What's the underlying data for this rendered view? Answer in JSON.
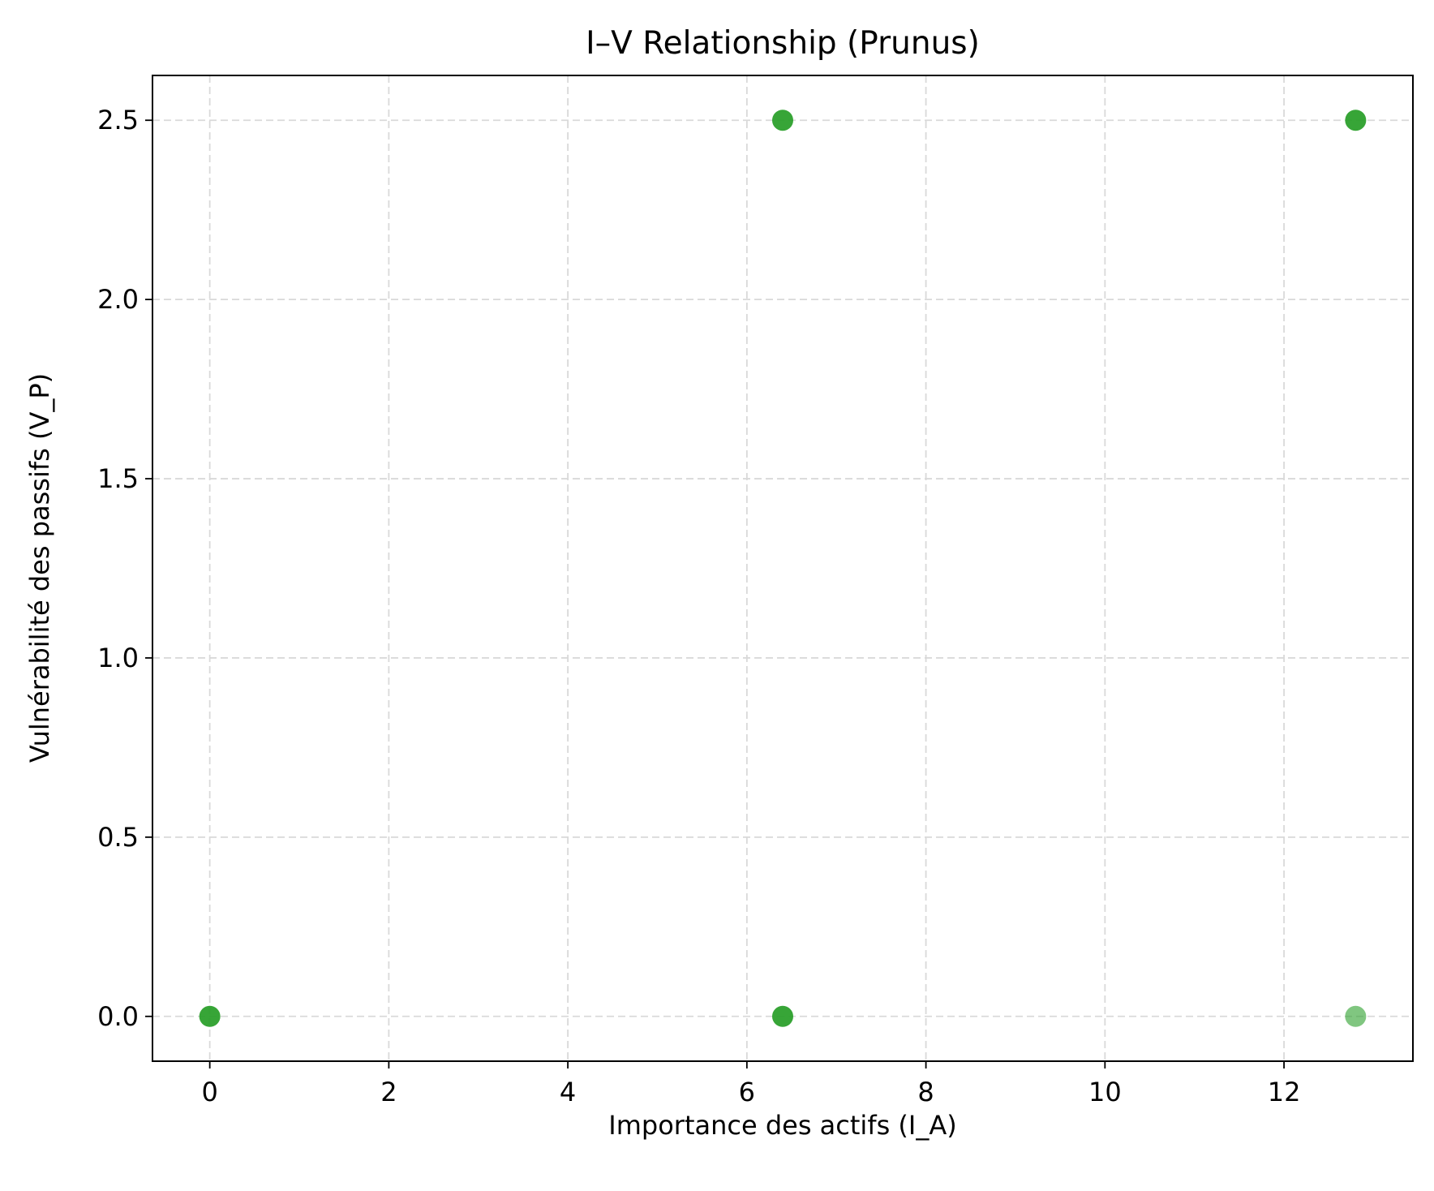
{
  "chart_data": {
    "type": "scatter",
    "title": "I–V Relationship (Prunus)",
    "xlabel": "Importance des actifs (I_A)",
    "ylabel": "Vulnérabilité des passifs (V_P)",
    "xlim": [
      -0.64,
      13.44
    ],
    "ylim": [
      -0.125,
      2.625
    ],
    "xticks": [
      0,
      2,
      4,
      6,
      8,
      10,
      12
    ],
    "xtick_labels": [
      "0",
      "2",
      "4",
      "6",
      "8",
      "10",
      "12"
    ],
    "yticks": [
      0.0,
      0.5,
      1.0,
      1.5,
      2.0,
      2.5
    ],
    "ytick_labels": [
      "0.0",
      "0.5",
      "1.0",
      "1.5",
      "2.0",
      "2.5"
    ],
    "grid": true,
    "marker_color": "#2ca02c",
    "points": [
      {
        "x": 0.0,
        "y": 0.0,
        "alpha": 0.95
      },
      {
        "x": 6.4,
        "y": 0.0,
        "alpha": 0.95
      },
      {
        "x": 6.4,
        "y": 2.5,
        "alpha": 0.95
      },
      {
        "x": 12.8,
        "y": 2.5,
        "alpha": 0.95
      },
      {
        "x": 12.8,
        "y": 0.0,
        "alpha": 0.6
      }
    ]
  }
}
